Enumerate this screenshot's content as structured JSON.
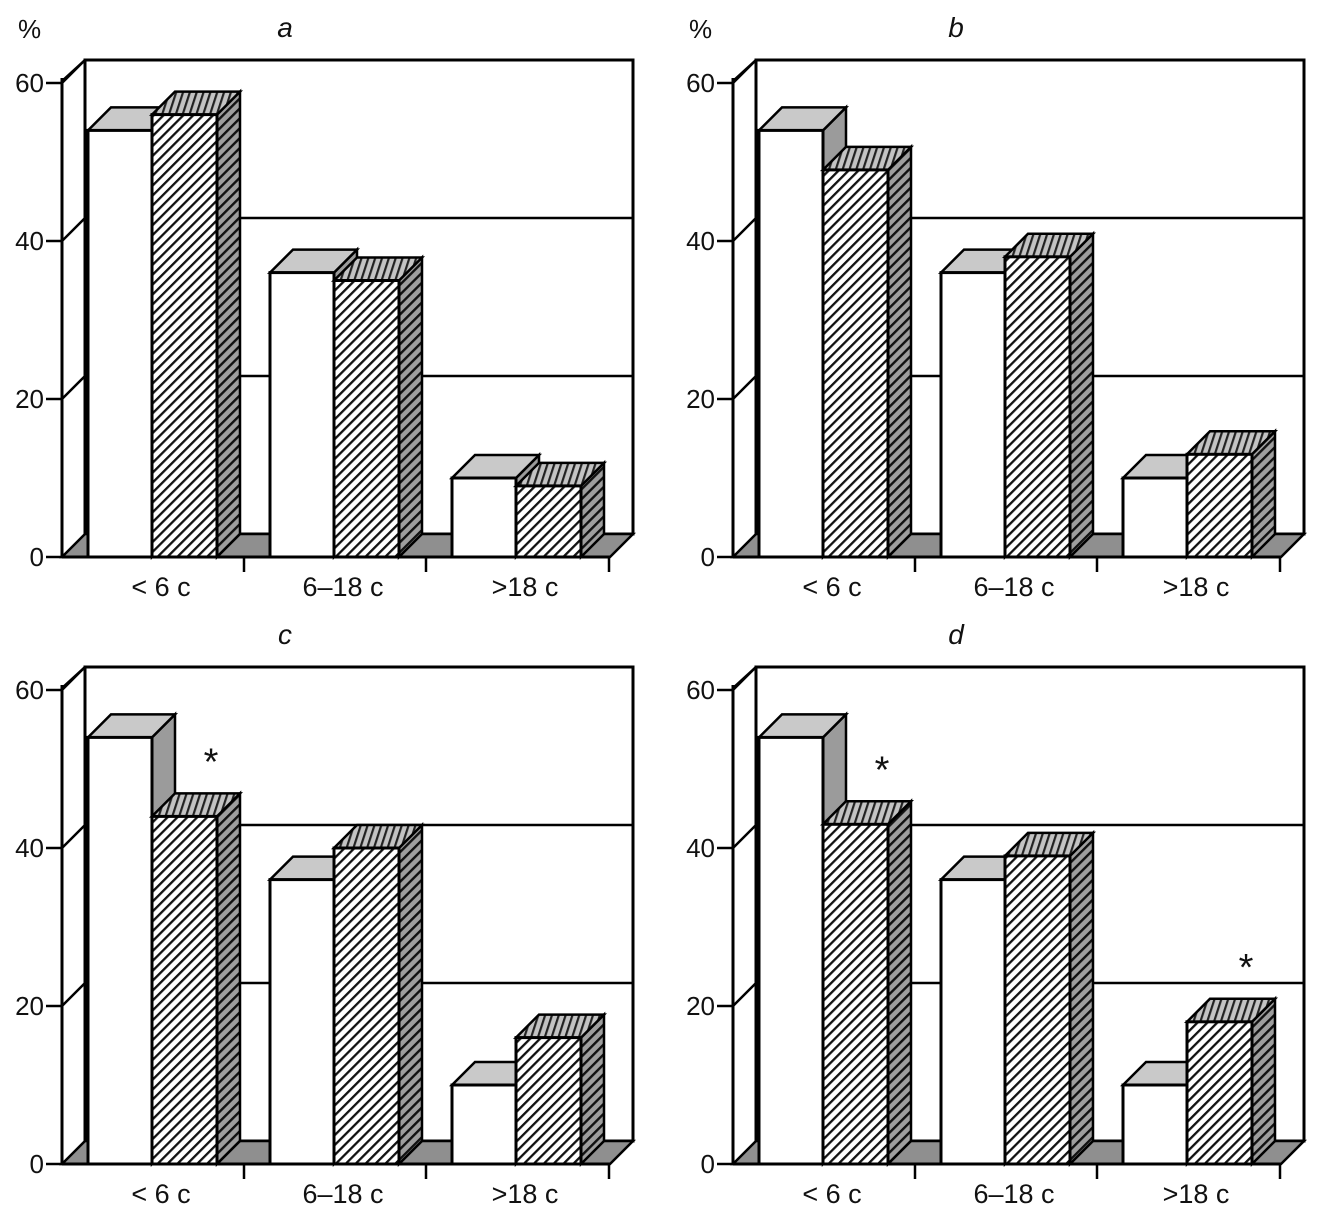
{
  "figure": {
    "description": "Four pseudo-3D grouped bar chart panels comparing an open (white) series and a hatched series across three duration categories, values in percent",
    "panel_labels": [
      "a",
      "b",
      "c",
      "d"
    ]
  },
  "symbols": {
    "star": "*"
  },
  "axis": {
    "tick_labels": [
      "0",
      "20",
      "40",
      "60"
    ],
    "tick_values": [
      0,
      20,
      40,
      60
    ],
    "unit_label": "%"
  },
  "colors": {
    "line": "#000000",
    "bar_open_face": "#ffffff",
    "bar_top_face": "#c9c9c9",
    "bar_side_face": "#9b9b9b",
    "hatch_top_bg": "#c3c3c3",
    "hatch_side_bg": "#9e9e9e",
    "floor": "#8f8f8f",
    "background": "#ffffff"
  },
  "chart_data": [
    {
      "panel_label": "a",
      "type": "bar",
      "style": "3d-column-pairs",
      "ylabel": "%",
      "show_ylabel": true,
      "ylim": [
        0,
        60
      ],
      "yticks": [
        0,
        20,
        40,
        60
      ],
      "grid": true,
      "legend": "none",
      "categories": [
        "< 6 c",
        "6–18 c",
        ">18 c"
      ],
      "series": [
        {
          "name": "open",
          "fill": "white",
          "values": [
            54,
            36,
            10
          ]
        },
        {
          "name": "hatched",
          "fill": "diagonal-hatch",
          "values": [
            56,
            35,
            9
          ]
        }
      ],
      "significance_stars": []
    },
    {
      "panel_label": "b",
      "type": "bar",
      "style": "3d-column-pairs",
      "ylabel": "%",
      "show_ylabel": true,
      "ylim": [
        0,
        60
      ],
      "yticks": [
        0,
        20,
        40,
        60
      ],
      "grid": true,
      "legend": "none",
      "categories": [
        "< 6 c",
        "6–18 c",
        ">18 c"
      ],
      "series": [
        {
          "name": "open",
          "fill": "white",
          "values": [
            54,
            36,
            10
          ]
        },
        {
          "name": "hatched",
          "fill": "diagonal-hatch",
          "values": [
            49,
            38,
            13
          ]
        }
      ],
      "significance_stars": []
    },
    {
      "panel_label": "c",
      "type": "bar",
      "style": "3d-column-pairs",
      "ylabel": "%",
      "show_ylabel": false,
      "ylim": [
        0,
        60
      ],
      "yticks": [
        0,
        20,
        40,
        60
      ],
      "grid": true,
      "legend": "none",
      "categories": [
        "< 6 c",
        "6–18 c",
        ">18 c"
      ],
      "series": [
        {
          "name": "open",
          "fill": "white",
          "values": [
            54,
            36,
            10
          ]
        },
        {
          "name": "hatched",
          "fill": "diagonal-hatch",
          "values": [
            44,
            40,
            16
          ]
        }
      ],
      "significance_stars": [
        {
          "series": "hatched",
          "category_index": 0
        }
      ]
    },
    {
      "panel_label": "d",
      "type": "bar",
      "style": "3d-column-pairs",
      "ylabel": "%",
      "show_ylabel": false,
      "ylim": [
        0,
        60
      ],
      "yticks": [
        0,
        20,
        40,
        60
      ],
      "grid": true,
      "legend": "none",
      "categories": [
        "< 6 c",
        "6–18 c",
        ">18 c"
      ],
      "series": [
        {
          "name": "open",
          "fill": "white",
          "values": [
            54,
            36,
            10
          ]
        },
        {
          "name": "hatched",
          "fill": "diagonal-hatch",
          "values": [
            43,
            39,
            18
          ]
        }
      ],
      "significance_stars": [
        {
          "series": "hatched",
          "category_index": 0
        },
        {
          "series": "hatched",
          "category_index": 2
        }
      ]
    }
  ]
}
